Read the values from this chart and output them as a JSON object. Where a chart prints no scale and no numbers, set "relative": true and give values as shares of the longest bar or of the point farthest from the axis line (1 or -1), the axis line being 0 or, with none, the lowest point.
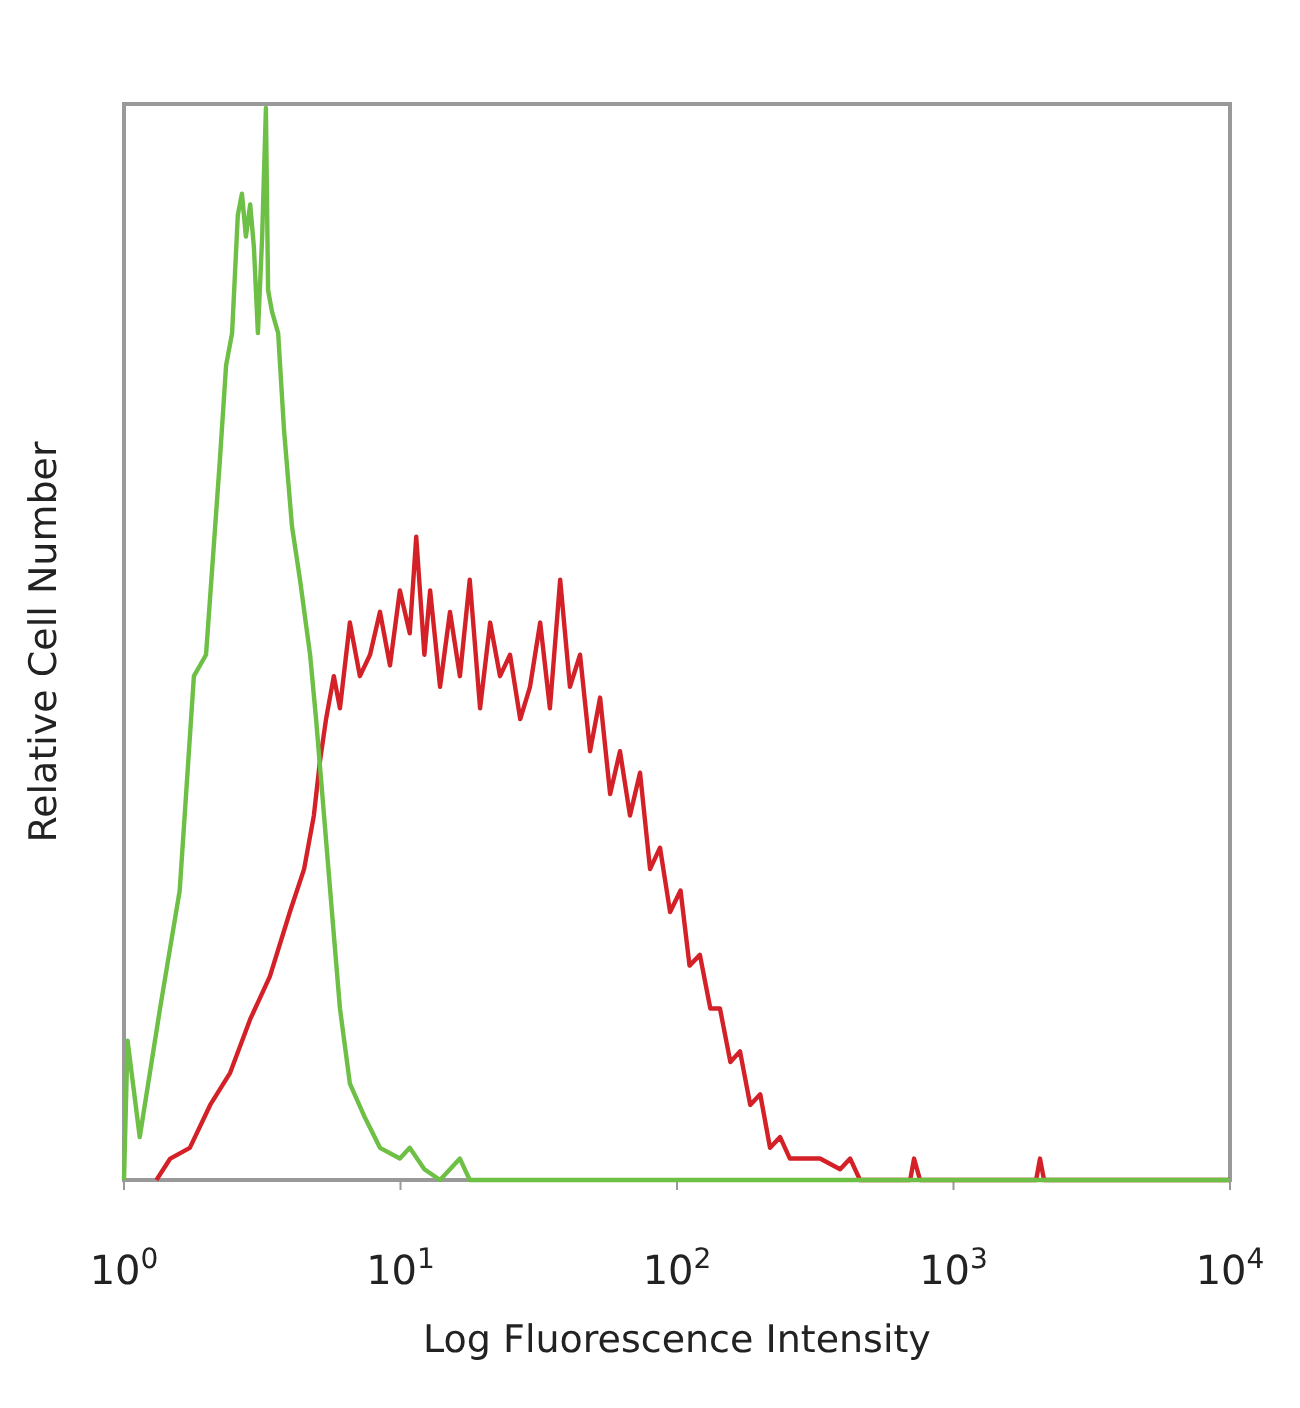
{
  "chart_data": {
    "type": "line",
    "xlabel": "Log Fluorescence Intensity",
    "ylabel": "Relative Cell Number",
    "log": "x",
    "relative": true,
    "tick_labels": "x",
    "grid": false,
    "marker": "none",
    "line_style": "solid",
    "xlim": [
      1,
      10000
    ],
    "xticks": [
      {
        "value": 1,
        "label": "10$^{0}$"
      },
      {
        "value": 10,
        "label": "10$^{1}$"
      },
      {
        "value": 100,
        "label": "10$^{2}$"
      },
      {
        "value": 1000,
        "label": "10$^{3}$"
      },
      {
        "value": 10000,
        "label": "10$^{4}$"
      }
    ],
    "series": [
      {
        "color": "#d42027",
        "x": [
          1.31,
          1.47,
          1.73,
          2.05,
          2.42,
          2.86,
          3.37,
          3.98,
          4.48,
          4.86,
          5.11,
          5.38,
          5.74,
          6.04,
          6.56,
          7.13,
          7.76,
          8.43,
          9.16,
          9.95,
          10.8,
          11.4,
          12.2,
          12.8,
          13.9,
          15.1,
          16.4,
          17.8,
          19.4,
          21.1,
          22.9,
          24.9,
          27.1,
          29.4,
          32.0,
          34.7,
          37.8,
          41.0,
          44.6,
          48.5,
          52.7,
          57.3,
          62.2,
          67.6,
          73.5,
          79.9,
          86.8,
          94.4,
          103,
          111,
          121,
          132,
          143,
          156,
          169,
          184,
          200,
          217,
          236,
          256,
          279,
          329,
          389,
          423,
          459,
          697,
          720,
          757,
          1990,
          2055,
          2125,
          10000
        ],
        "values": [
          0,
          0.02,
          0.03,
          0.07,
          0.1,
          0.15,
          0.19,
          0.25,
          0.29,
          0.34,
          0.39,
          0.43,
          0.47,
          0.44,
          0.52,
          0.47,
          0.49,
          0.53,
          0.48,
          0.55,
          0.51,
          0.6,
          0.49,
          0.55,
          0.46,
          0.53,
          0.47,
          0.56,
          0.44,
          0.52,
          0.47,
          0.49,
          0.43,
          0.46,
          0.52,
          0.44,
          0.56,
          0.46,
          0.49,
          0.4,
          0.45,
          0.36,
          0.4,
          0.34,
          0.38,
          0.29,
          0.31,
          0.25,
          0.27,
          0.2,
          0.21,
          0.16,
          0.16,
          0.11,
          0.12,
          0.07,
          0.08,
          0.03,
          0.04,
          0.02,
          0.02,
          0.02,
          0.01,
          0.02,
          0,
          0,
          0.02,
          0,
          0,
          0.02,
          0,
          0
        ]
      },
      {
        "color": "#6dbf45",
        "x": [
          1,
          1.03,
          1.14,
          1.35,
          1.59,
          1.79,
          1.98,
          2.22,
          2.34,
          2.46,
          2.58,
          2.67,
          2.76,
          2.86,
          2.95,
          3.05,
          3.16,
          3.26,
          3.32,
          3.43,
          3.61,
          3.79,
          4.05,
          4.33,
          4.71,
          4.95,
          5.29,
          5.65,
          6.04,
          6.56,
          7.38,
          8.43,
          9.95,
          10.8,
          12.2,
          13.9,
          16.4,
          17.8,
          19.4,
          10000
        ],
        "values": [
          0,
          0.13,
          0.04,
          0.16,
          0.27,
          0.47,
          0.49,
          0.67,
          0.76,
          0.79,
          0.9,
          0.92,
          0.88,
          0.91,
          0.87,
          0.79,
          0.88,
          1,
          0.83,
          0.81,
          0.79,
          0.7,
          0.61,
          0.56,
          0.49,
          0.43,
          0.34,
          0.25,
          0.16,
          0.09,
          0.06,
          0.03,
          0.02,
          0.03,
          0.01,
          0,
          0.02,
          0,
          0,
          0
        ]
      }
    ]
  }
}
